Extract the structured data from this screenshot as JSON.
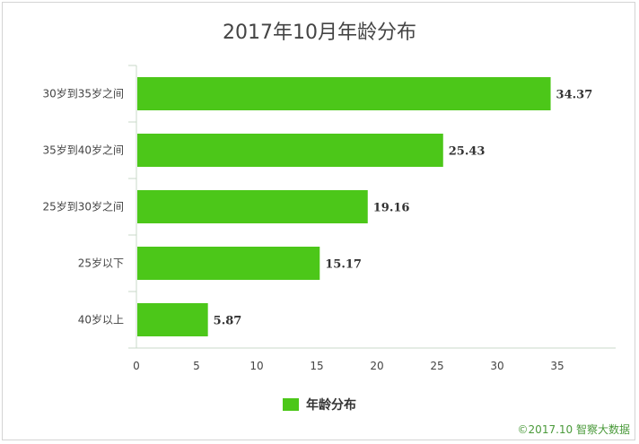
{
  "chart_data": {
    "type": "bar",
    "orientation": "horizontal",
    "title": "2017年10月年龄分布",
    "categories": [
      "30岁到35岁之间",
      "35岁到40岁之间",
      "25岁到30岁之间",
      "25岁以下",
      "40岁以上"
    ],
    "series": [
      {
        "name": "年龄分布",
        "values": [
          34.37,
          25.43,
          19.16,
          15.17,
          5.87
        ]
      }
    ],
    "data_labels": [
      "34.37",
      "25.43",
      "19.16",
      "15.17",
      "5.87"
    ],
    "xlim": [
      0,
      40
    ],
    "xticks": [
      "0",
      "5",
      "10",
      "15",
      "20",
      "25",
      "30",
      "35"
    ],
    "xlabel": "",
    "ylabel": "",
    "grid": false,
    "legend_position": "bottom",
    "bar_color": "#4cc719"
  },
  "footer": "©2017.10 智察大数据"
}
